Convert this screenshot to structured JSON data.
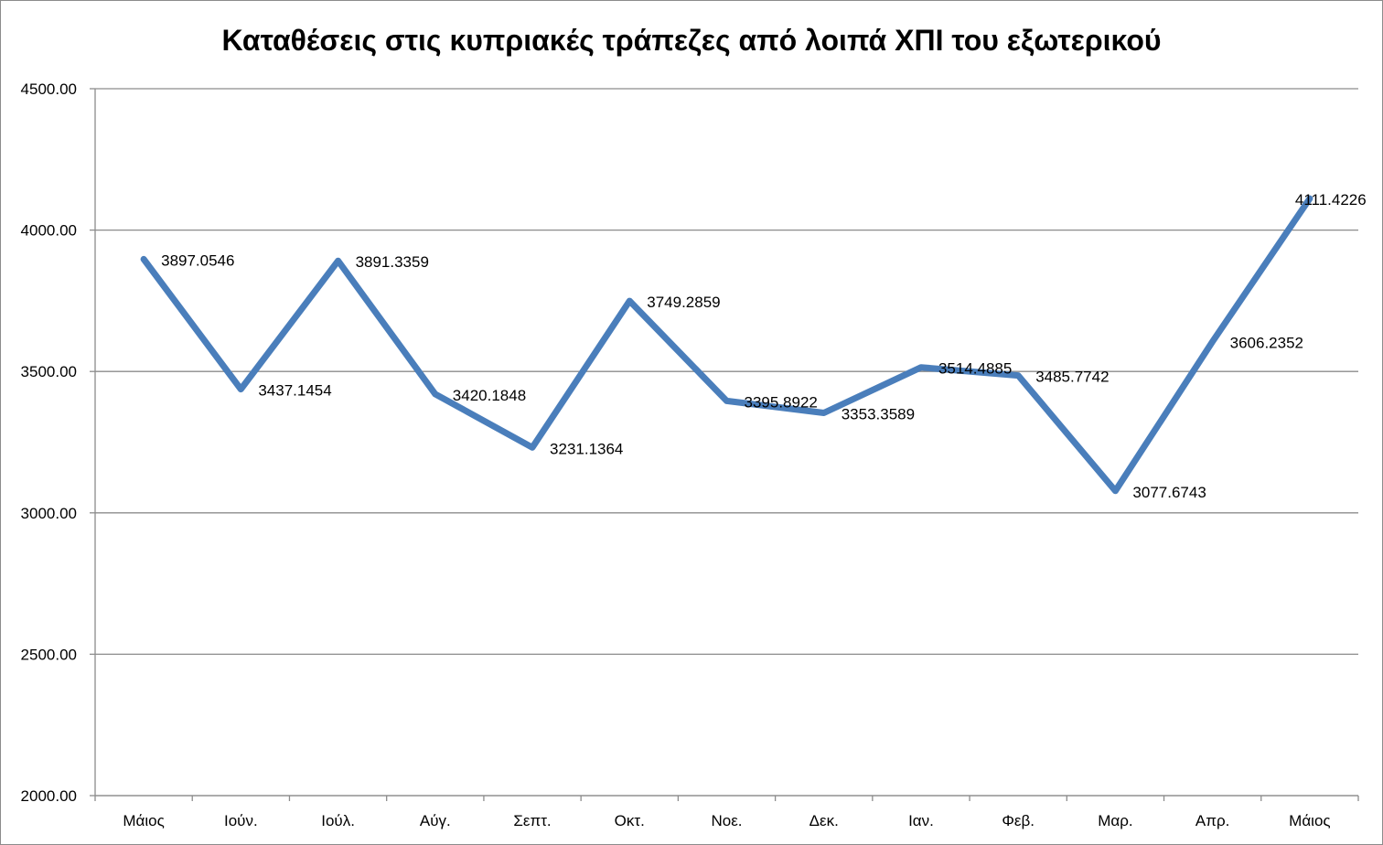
{
  "chart_data": {
    "type": "line",
    "title": "Καταθέσεις στις κυπριακές τράπεζες από λοιπά ΧΠΙ του εξωτερικού",
    "xlabel": "",
    "ylabel": "",
    "categories": [
      "Μάιος",
      "Ιούν.",
      "Ιούλ.",
      "Αύγ.",
      "Σεπτ.",
      "Οκτ.",
      "Νοε.",
      "Δεκ.",
      "Ιαν.",
      "Φεβ.",
      "Μαρ.",
      "Απρ.",
      "Μάιος"
    ],
    "series": [
      {
        "values": [
          3897.0546,
          3437.1454,
          3891.3359,
          3420.1848,
          3231.1364,
          3749.2859,
          3395.8922,
          3353.3589,
          3514.4885,
          3485.7742,
          3077.6743,
          3606.2352,
          4111.4226
        ],
        "labels": [
          "3897.0546",
          "3437.1454",
          "3891.3359",
          "3420.1848",
          "3231.1364",
          "3749.2859",
          "3395.8922",
          "3353.3589",
          "3514.4885",
          "3485.7742",
          "3077.6743",
          "3606.2352",
          "4111.4226"
        ],
        "color": "#4a7ebb"
      }
    ],
    "ylim": [
      2000,
      4500
    ],
    "yticks": [
      2000,
      2500,
      3000,
      3500,
      4000,
      4500
    ],
    "ytick_labels": [
      "2000.00",
      "2500.00",
      "3000.00",
      "3500.00",
      "4000.00",
      "4500.00"
    ],
    "grid": true,
    "legend": "none",
    "gridline_color": "#8c8c8c"
  }
}
